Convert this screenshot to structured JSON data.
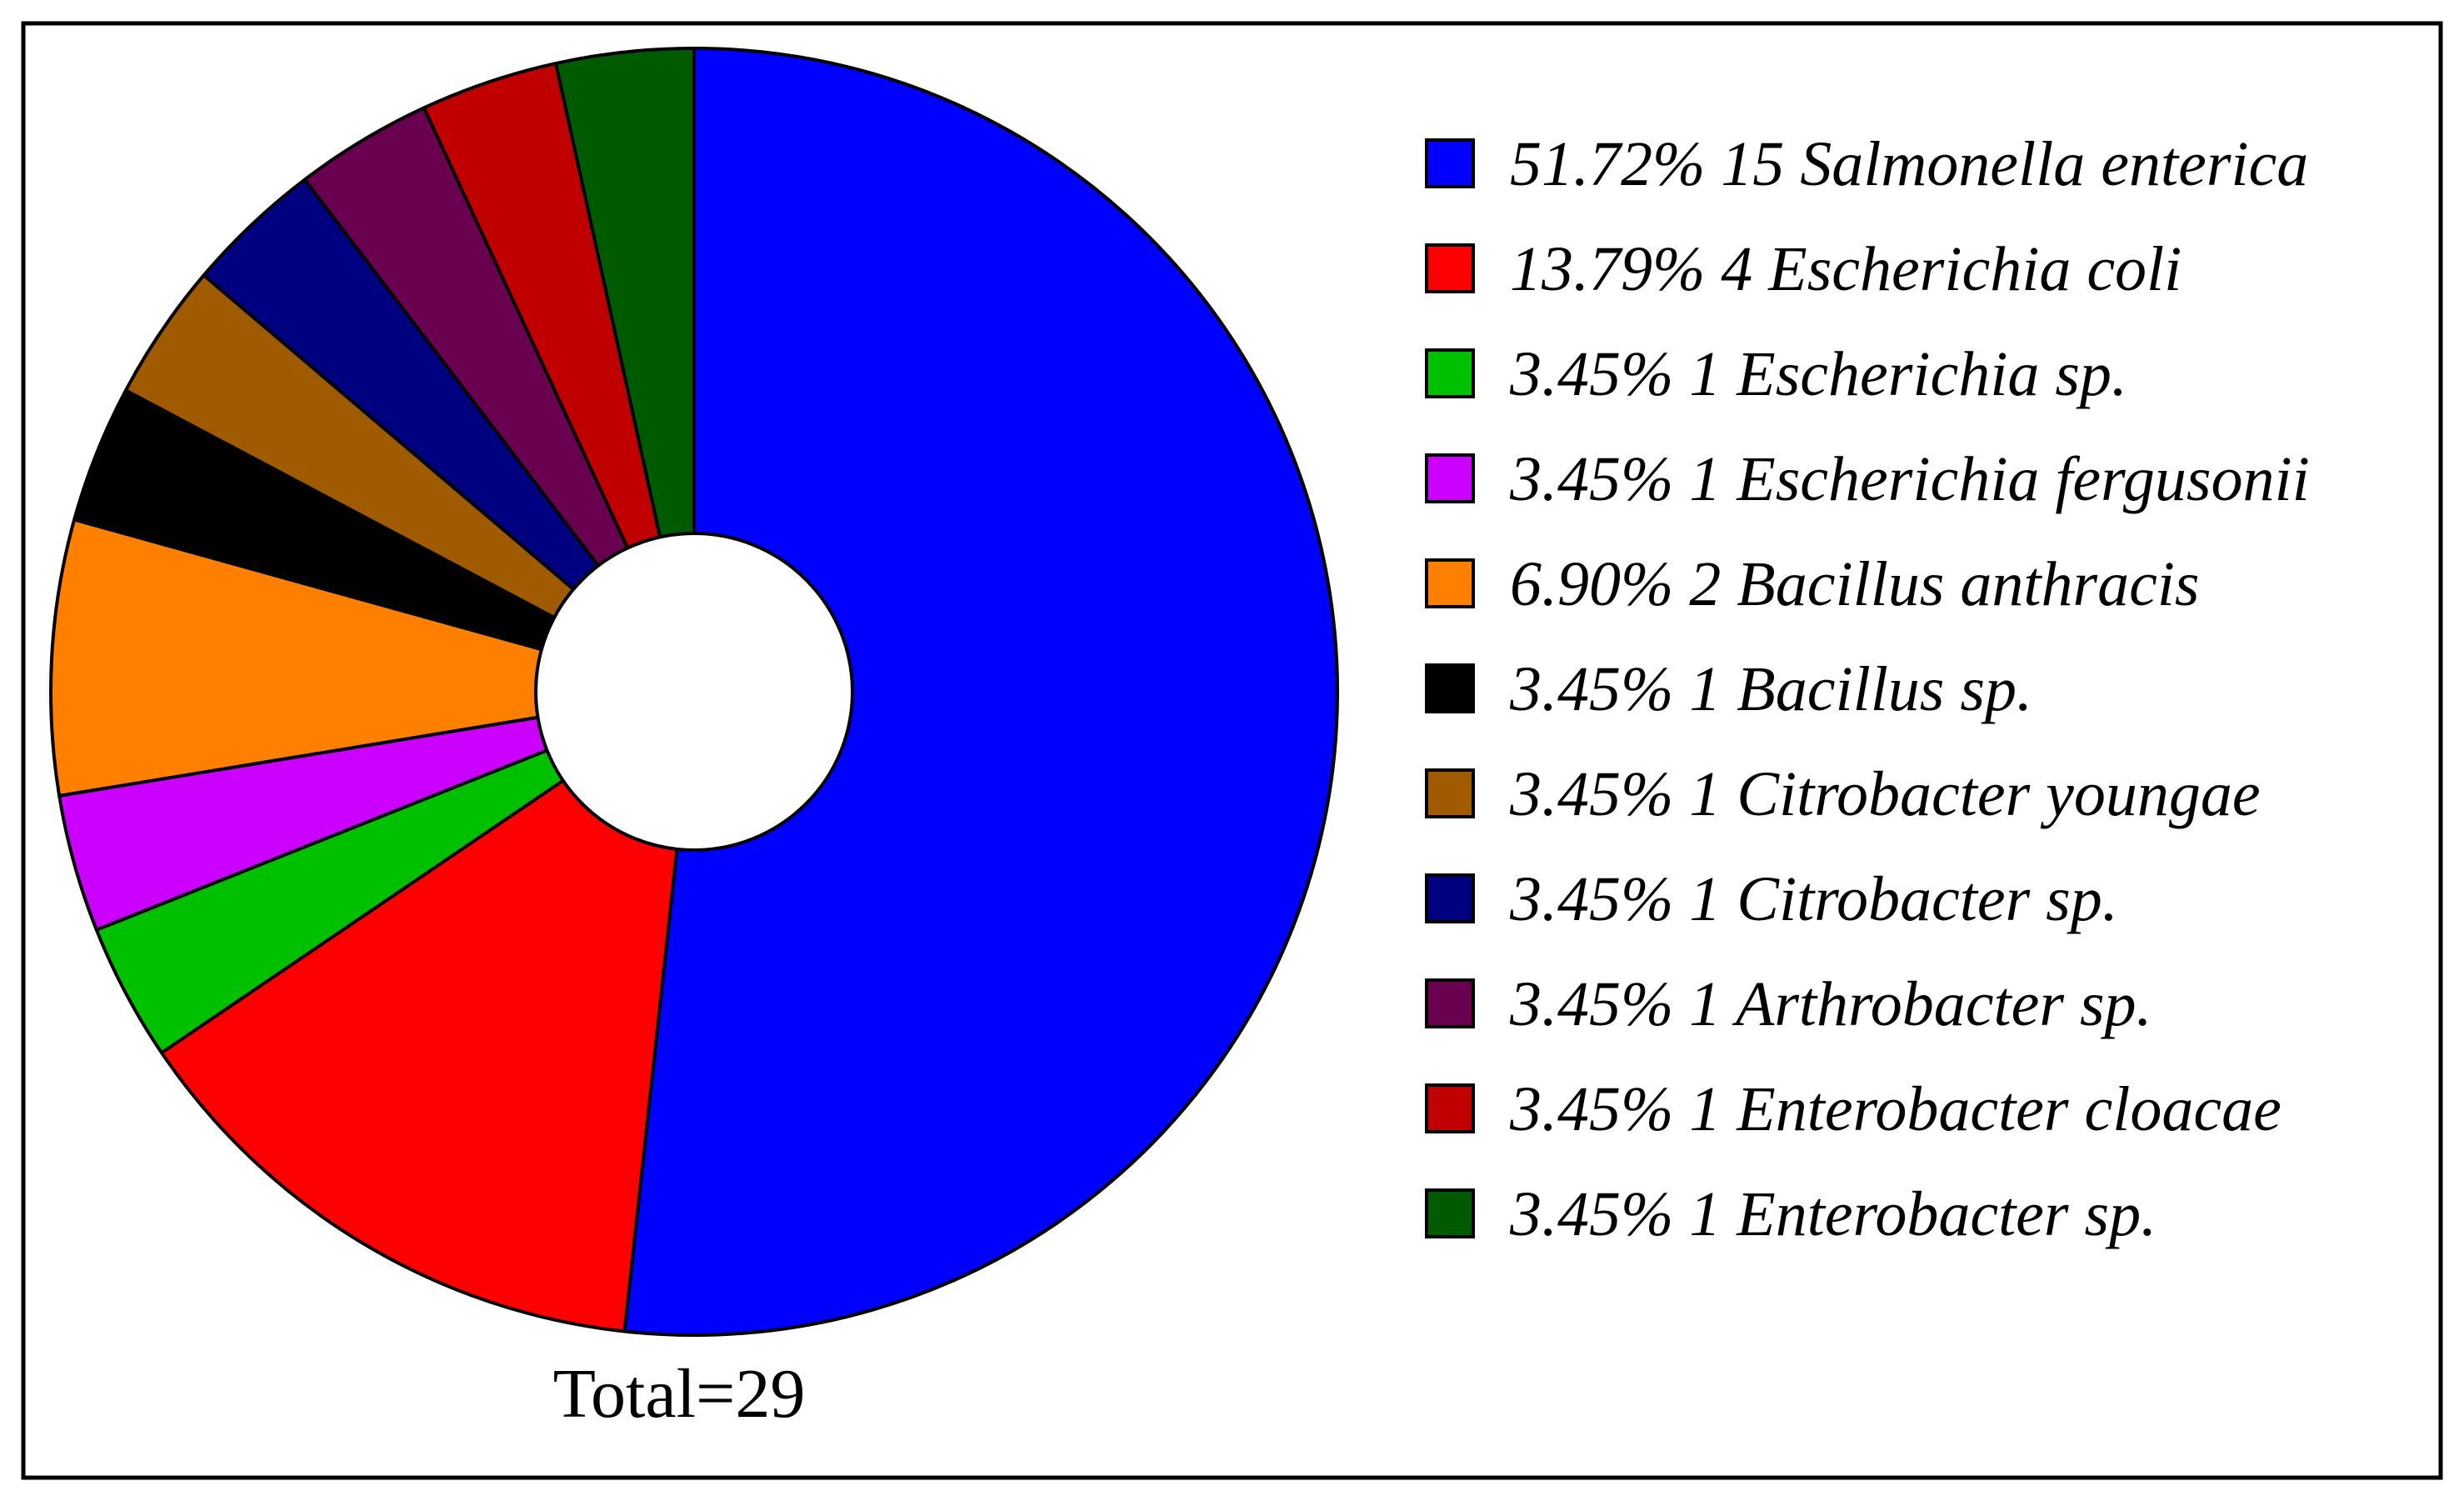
{
  "chart_data": {
    "type": "pie",
    "variant": "donut",
    "total_label": "Total=29",
    "legend_placement": "right",
    "slices": [
      {
        "label": "Salmonella enterica",
        "percent_label": "51.72%",
        "count": 15,
        "value": 51.72,
        "color": "#0000ff"
      },
      {
        "label": "Escherichia coli",
        "percent_label": "13.79%",
        "count": 4,
        "value": 13.79,
        "color": "#ff0000"
      },
      {
        "label": "Escherichia sp.",
        "percent_label": "3.45%",
        "count": 1,
        "value": 3.45,
        "color": "#00c000"
      },
      {
        "label": "Escherichia fergusonii",
        "percent_label": "3.45%",
        "count": 1,
        "value": 3.45,
        "color": "#cc00ff"
      },
      {
        "label": "Bacillus anthracis",
        "percent_label": "6.90%",
        "count": 2,
        "value": 6.9,
        "color": "#ff8000"
      },
      {
        "label": "Bacillus sp.",
        "percent_label": "3.45%",
        "count": 1,
        "value": 3.45,
        "color": "#000000"
      },
      {
        "label": "Citrobacter youngae",
        "percent_label": "3.45%",
        "count": 1,
        "value": 3.45,
        "color": "#a05a00"
      },
      {
        "label": "Citrobacter sp.",
        "percent_label": "3.45%",
        "count": 1,
        "value": 3.45,
        "color": "#000080"
      },
      {
        "label": "Arthrobacter sp.",
        "percent_label": "3.45%",
        "count": 1,
        "value": 3.45,
        "color": "#6a0050"
      },
      {
        "label": "Enterobacter cloacae",
        "percent_label": "3.45%",
        "count": 1,
        "value": 3.45,
        "color": "#c00000"
      },
      {
        "label": "Enterobacter sp.",
        "percent_label": "3.45%",
        "count": 1,
        "value": 3.45,
        "color": "#005a00"
      }
    ]
  }
}
